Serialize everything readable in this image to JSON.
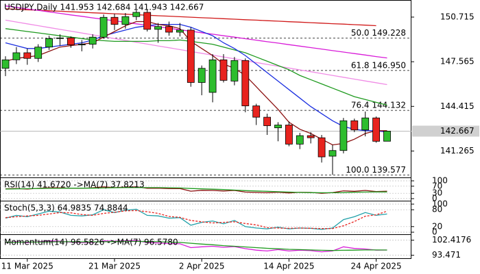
{
  "chart_data": {
    "type": "candlestick",
    "title": "USDJPY,Daily  141.953 142.684 141.943 142.667",
    "categories": [
      null,
      null,
      "11 Mar 2025",
      null,
      null,
      null,
      null,
      null,
      null,
      null,
      "21 Mar 2025",
      null,
      null,
      null,
      null,
      null,
      null,
      null,
      "2 Apr 2025",
      null,
      null,
      null,
      null,
      null,
      null,
      null,
      "14 Apr 2025",
      null,
      null,
      null,
      null,
      null,
      null,
      null,
      "24 Apr 2025",
      null
    ],
    "open": [
      147.1,
      147.7,
      148.2,
      147.8,
      148.6,
      149.2,
      149.25,
      148.75,
      148.8,
      149.3,
      150.7,
      150.2,
      150.75,
      151.05,
      149.85,
      150.05,
      149.65,
      149.8,
      146.1,
      145.4,
      147.7,
      146.2,
      147.65,
      144.45,
      143.65,
      142.9,
      143.1,
      141.75,
      142.35,
      142.2,
      140.9,
      141.3,
      143.4,
      142.75,
      143.6,
      141.953
    ],
    "high": [
      147.95,
      148.6,
      148.5,
      148.8,
      149.4,
      149.5,
      149.35,
      149.1,
      149.5,
      150.9,
      150.95,
      151.0,
      151.2,
      151.25,
      150.3,
      150.4,
      150.3,
      150.0,
      147.3,
      148.1,
      148.1,
      147.9,
      147.8,
      144.6,
      143.9,
      143.3,
      143.35,
      142.55,
      142.6,
      142.4,
      141.7,
      143.6,
      143.55,
      144.05,
      143.7,
      142.684
    ],
    "low": [
      146.55,
      147.4,
      147.35,
      147.55,
      148.4,
      148.7,
      148.55,
      148.3,
      148.5,
      149.2,
      149.8,
      149.9,
      150.5,
      149.7,
      148.9,
      149.4,
      149.35,
      145.8,
      145.2,
      144.7,
      146.1,
      145.9,
      144.0,
      143.1,
      142.4,
      141.95,
      141.6,
      141.4,
      141.8,
      140.45,
      139.58,
      141.1,
      142.6,
      142.3,
      141.85,
      141.943
    ],
    "close": [
      147.7,
      148.2,
      147.8,
      148.6,
      149.2,
      149.25,
      148.75,
      148.8,
      149.3,
      150.7,
      150.2,
      150.75,
      151.05,
      149.85,
      150.05,
      149.65,
      149.8,
      146.1,
      147.1,
      147.7,
      146.25,
      147.65,
      144.45,
      143.65,
      143.05,
      143.1,
      141.75,
      142.35,
      142.2,
      140.85,
      141.3,
      143.4,
      142.75,
      143.6,
      141.95,
      142.667
    ],
    "up_color": "#2ebd2e",
    "down_color": "#e8231e",
    "ylim": [
      139.45,
      151.68
    ],
    "yticks": [
      150.715,
      147.565,
      144.415,
      141.265
    ],
    "last_price": 142.667,
    "fib_levels": [
      {
        "value": 149.228,
        "label": "50.0 149.228"
      },
      {
        "value": 146.95,
        "label": "61.8 146.950"
      },
      {
        "value": 144.132,
        "label": "76.4 144.132"
      },
      {
        "value": 139.577,
        "label": "100.0 139.577"
      }
    ],
    "series": [
      {
        "color": "#d01818",
        "values": [
          151.3,
          151.27,
          151.23,
          151.2,
          151.16,
          151.13,
          151.09,
          151.06,
          151.02,
          150.99,
          150.95,
          150.92,
          150.88,
          150.85,
          150.81,
          150.78,
          150.74,
          150.71,
          150.67,
          150.64,
          150.6,
          150.57,
          150.53,
          150.5,
          150.46,
          150.43,
          150.39,
          150.36,
          150.32,
          150.29,
          150.25,
          150.22,
          150.18,
          150.15,
          150.11,
          null
        ]
      },
      {
        "color": "#d81ad8",
        "values": [
          151.5,
          151.4,
          151.29,
          151.19,
          151.08,
          150.98,
          150.87,
          150.77,
          150.66,
          150.56,
          150.45,
          150.35,
          150.24,
          150.14,
          150.03,
          149.93,
          149.82,
          149.72,
          149.61,
          149.51,
          149.4,
          149.3,
          149.19,
          149.09,
          148.98,
          148.88,
          148.77,
          148.67,
          148.56,
          148.46,
          148.35,
          148.25,
          148.14,
          148.04,
          147.93,
          147.83
        ]
      },
      {
        "color": "#f08ce6",
        "values": [
          150.5,
          150.37,
          150.24,
          150.11,
          149.98,
          149.85,
          149.72,
          149.59,
          149.46,
          149.33,
          149.2,
          149.07,
          148.94,
          148.81,
          148.68,
          148.55,
          148.42,
          148.29,
          148.16,
          148.03,
          147.9,
          147.77,
          147.64,
          147.51,
          147.38,
          147.25,
          147.12,
          146.99,
          146.86,
          146.73,
          146.6,
          146.47,
          146.34,
          146.21,
          146.08,
          145.95
        ]
      },
      {
        "color": "#1e9a1e",
        "values": [
          149.9,
          149.8,
          149.7,
          149.6,
          149.5,
          149.4,
          149.3,
          149.2,
          149.1,
          149.05,
          149.0,
          149.0,
          149.0,
          149.0,
          149.05,
          149.05,
          149.1,
          149.0,
          148.9,
          148.8,
          148.6,
          148.4,
          148.2,
          147.9,
          147.6,
          147.3,
          147.0,
          146.6,
          146.3,
          146.0,
          145.7,
          145.4,
          145.1,
          144.9,
          144.7,
          144.5
        ]
      },
      {
        "color": "#1a2ee0",
        "values": [
          148.9,
          148.7,
          148.5,
          148.5,
          148.6,
          148.7,
          148.8,
          148.9,
          149.1,
          149.4,
          149.6,
          149.8,
          150.0,
          150.1,
          150.2,
          150.2,
          150.2,
          150.0,
          149.7,
          149.4,
          148.9,
          148.5,
          148.0,
          147.4,
          146.8,
          146.2,
          145.6,
          145.0,
          144.4,
          143.9,
          143.4,
          143.0,
          142.8,
          142.7,
          142.7,
          142.6
        ]
      },
      {
        "color": "#8b1010",
        "values": [
          147.6,
          147.8,
          147.9,
          148.0,
          148.3,
          148.6,
          148.7,
          148.8,
          148.9,
          149.3,
          149.7,
          150.1,
          150.4,
          150.4,
          150.2,
          150.1,
          149.9,
          149.0,
          148.5,
          148.0,
          147.4,
          147.1,
          146.6,
          145.8,
          145.0,
          144.2,
          143.3,
          142.8,
          142.5,
          142.1,
          141.7,
          141.8,
          142.1,
          142.5,
          142.7,
          142.7
        ]
      }
    ],
    "indicators": [
      {
        "title": "RSI(14) 41.6720 ->MA(7) 37.8213",
        "ylim": [
          0,
          100
        ],
        "yticks": [
          100,
          70,
          30,
          0
        ],
        "series": [
          {
            "color": "#8b1010",
            "values": [
              55,
              57,
              54,
              58,
              61,
              61,
              58,
              58,
              61,
              66,
              62,
              65,
              66,
              58,
              59,
              56,
              57,
              42,
              47,
              46,
              43,
              46,
              37,
              35,
              33,
              36,
              32,
              36,
              35,
              30,
              34,
              44,
              41,
              46,
              40,
              41.672
            ]
          },
          {
            "color": "#1e9a1e",
            "values": [
              54,
              55,
              56,
              57,
              58,
              58,
              59,
              59,
              59,
              60,
              61,
              62,
              62,
              62,
              62,
              61,
              60,
              57,
              55,
              53,
              51,
              48,
              45,
              43,
              41,
              39,
              37,
              35,
              34,
              33,
              33,
              34,
              36,
              37,
              38,
              37.8213
            ]
          }
        ]
      },
      {
        "title": "Stoch(5,3,3) 64.9835 74.8844",
        "ylim": [
          0,
          100
        ],
        "yticks": [
          100,
          80,
          20,
          0
        ],
        "series": [
          {
            "color": "#20a0a8",
            "values": [
              50,
              60,
              55,
              65,
              75,
              72,
              60,
              58,
              62,
              80,
              70,
              78,
              82,
              60,
              58,
              50,
              52,
              25,
              35,
              40,
              30,
              42,
              20,
              15,
              12,
              18,
              12,
              15,
              14,
              10,
              15,
              45,
              55,
              70,
              60,
              64.9835
            ]
          },
          {
            "color": "#e8231e",
            "dash": true,
            "values": [
              52,
              55,
              58,
              60,
              65,
              70,
              69,
              63,
              60,
              67,
              71,
              76,
              77,
              73,
              67,
              56,
              53,
              42,
              37,
              33,
              35,
              37,
              31,
              26,
              16,
              15,
              14,
              15,
              14,
              13,
              13,
              23,
              38,
              57,
              62,
              74.8844
            ]
          }
        ]
      },
      {
        "title": "Momentum(14) 96.5826 ->MA(7) 96.5780",
        "ylim": [
          92.5,
          103.5
        ],
        "yticks": [
          102.4176,
          93.471
        ],
        "series": [
          {
            "color": "#d81ad8",
            "values": [
              101,
              101.5,
              101,
              101.5,
              102,
              101.8,
              101.2,
              101,
              101,
              102,
              101.8,
              102,
              102.2,
              101,
              100.8,
              100.4,
              100.3,
              98,
              98.5,
              98.8,
              98.2,
              98.6,
              97.4,
              96.5,
              96,
              96.8,
              96,
              96.5,
              96.2,
              95.5,
              96,
              98.5,
              97.5,
              97.2,
              96.5,
              96.5826
            ]
          },
          {
            "color": "#1e9a1e",
            "values": [
              101.2,
              101.2,
              101.3,
              101.3,
              101.4,
              101.5,
              101.5,
              101.4,
              101.4,
              101.5,
              101.6,
              101.7,
              101.7,
              101.6,
              101.5,
              101.3,
              101.1,
              100.6,
              100.1,
              99.7,
              99.2,
              98.8,
              98.4,
              98.0,
              97.6,
              97.3,
              97.0,
              96.8,
              96.6,
              96.4,
              96.3,
              96.4,
              96.5,
              96.6,
              96.6,
              96.578
            ]
          }
        ]
      }
    ]
  }
}
